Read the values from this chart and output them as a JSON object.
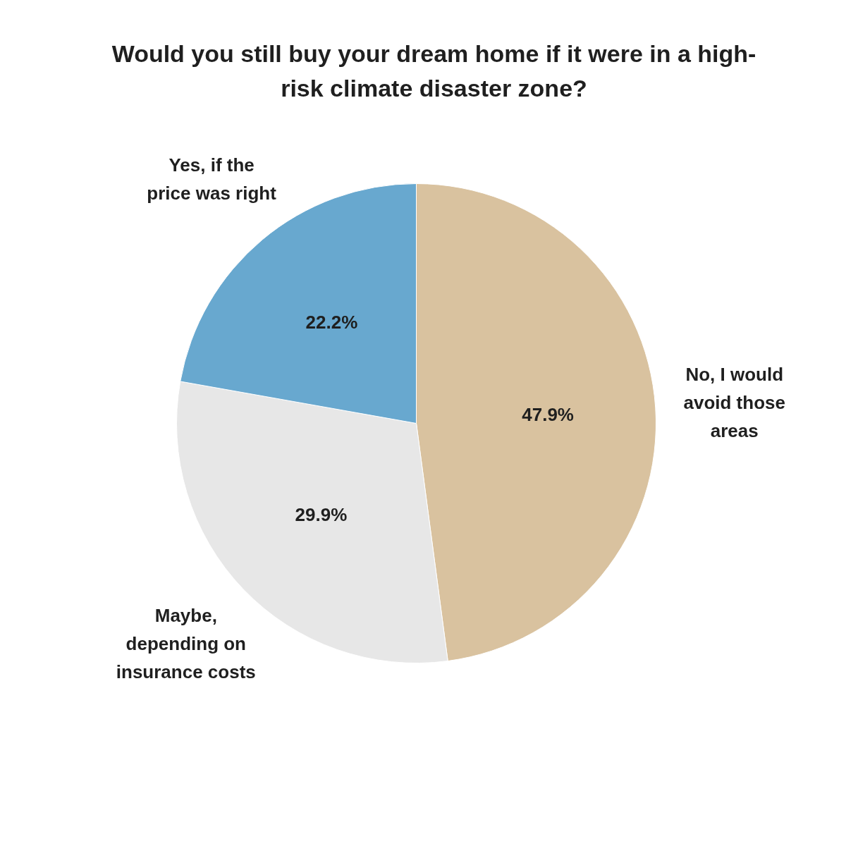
{
  "chart_data": {
    "type": "pie",
    "title": "Would you still buy your dream home if it were in a high-risk climate disaster zone?",
    "categories": [
      "No, I would avoid those areas",
      "Maybe, depending on insurance costs",
      "Yes, if the price was right"
    ],
    "values": [
      47.9,
      29.9,
      22.2
    ],
    "colors": [
      "#d9c29f",
      "#e7e7e7",
      "#68a8cf"
    ],
    "value_labels": [
      "47.9%",
      "29.9%",
      "22.2%"
    ]
  }
}
